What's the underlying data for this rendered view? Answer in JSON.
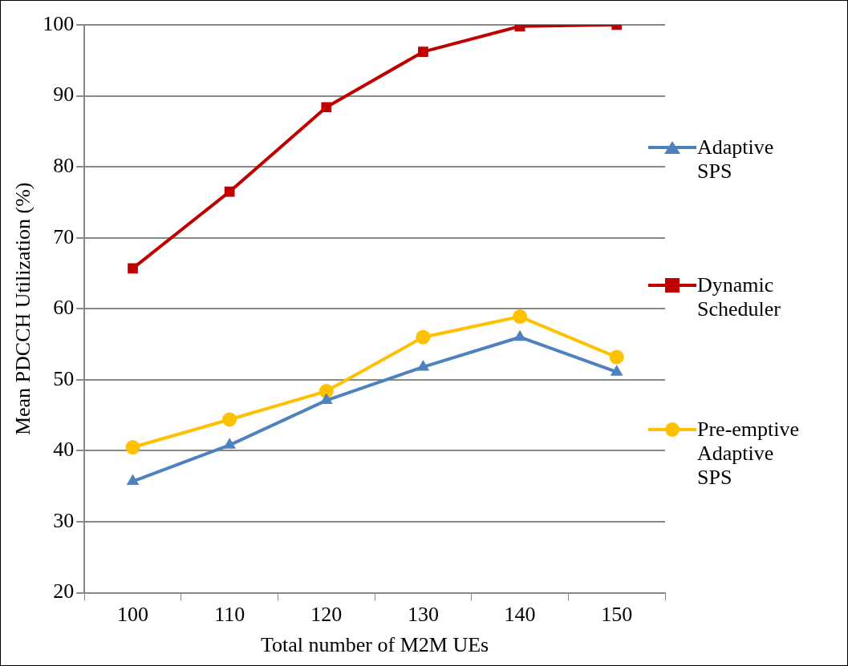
{
  "chart_data": {
    "type": "line",
    "xlabel": "Total number of M2M UEs",
    "ylabel": "Mean PDCCH Utilization (%)",
    "categories": [
      "100",
      "110",
      "120",
      "130",
      "140",
      "150"
    ],
    "series": [
      {
        "name": "Adaptive SPS",
        "color": "#4f81bd",
        "marker": "triangle",
        "values": [
          35.7,
          40.8,
          47.1,
          51.8,
          56.0,
          51.1
        ]
      },
      {
        "name": "Dynamic Scheduler",
        "color": "#c00000",
        "marker": "square",
        "values": [
          65.7,
          76.5,
          88.4,
          96.2,
          99.8,
          100
        ]
      },
      {
        "name": "Pre-emptive Adaptive SPS",
        "color": "#ffc000",
        "marker": "circle",
        "values": [
          40.5,
          44.4,
          48.4,
          56.0,
          58.9,
          53.2
        ]
      }
    ],
    "ylim": [
      20,
      100
    ],
    "yticks": [
      20,
      30,
      40,
      50,
      60,
      70,
      80,
      90,
      100
    ],
    "grid": "y",
    "legend": "right",
    "line_style": "solid"
  }
}
